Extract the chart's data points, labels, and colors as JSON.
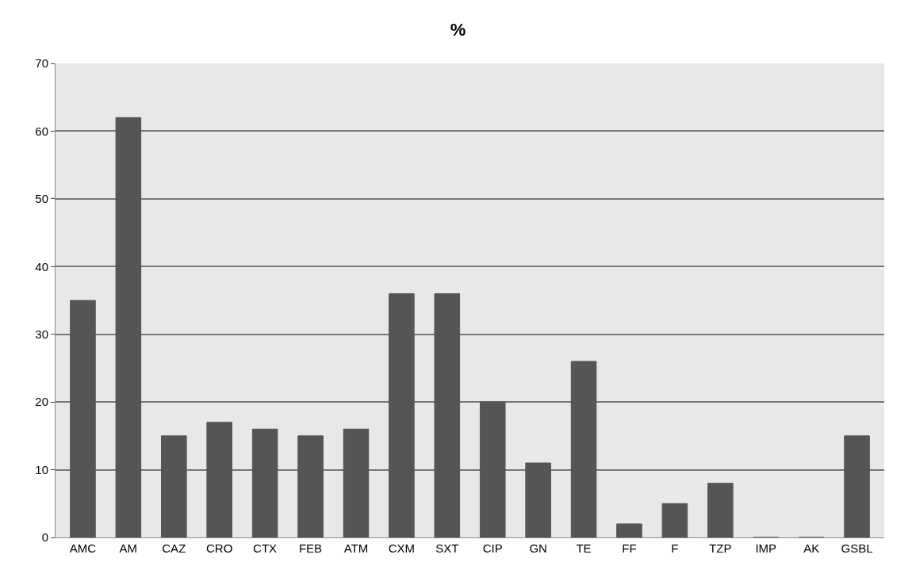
{
  "chart_data": {
    "type": "bar",
    "title": "%",
    "categories": [
      "AMC",
      "AM",
      "CAZ",
      "CRO",
      "CTX",
      "FEB",
      "ATM",
      "CXM",
      "SXT",
      "CIP",
      "GN",
      "TE",
      "FF",
      "F",
      "TZP",
      "IMP",
      "AK",
      "GSBL"
    ],
    "values": [
      35,
      62,
      15,
      17,
      16,
      15,
      16,
      36,
      36,
      20,
      11,
      26,
      2,
      5,
      8,
      0,
      0,
      15
    ],
    "color": "#555555",
    "ylim": [
      0,
      70
    ],
    "yticks": [
      0,
      10,
      20,
      30,
      40,
      50,
      60,
      70
    ],
    "grid": "y",
    "legend": false
  }
}
